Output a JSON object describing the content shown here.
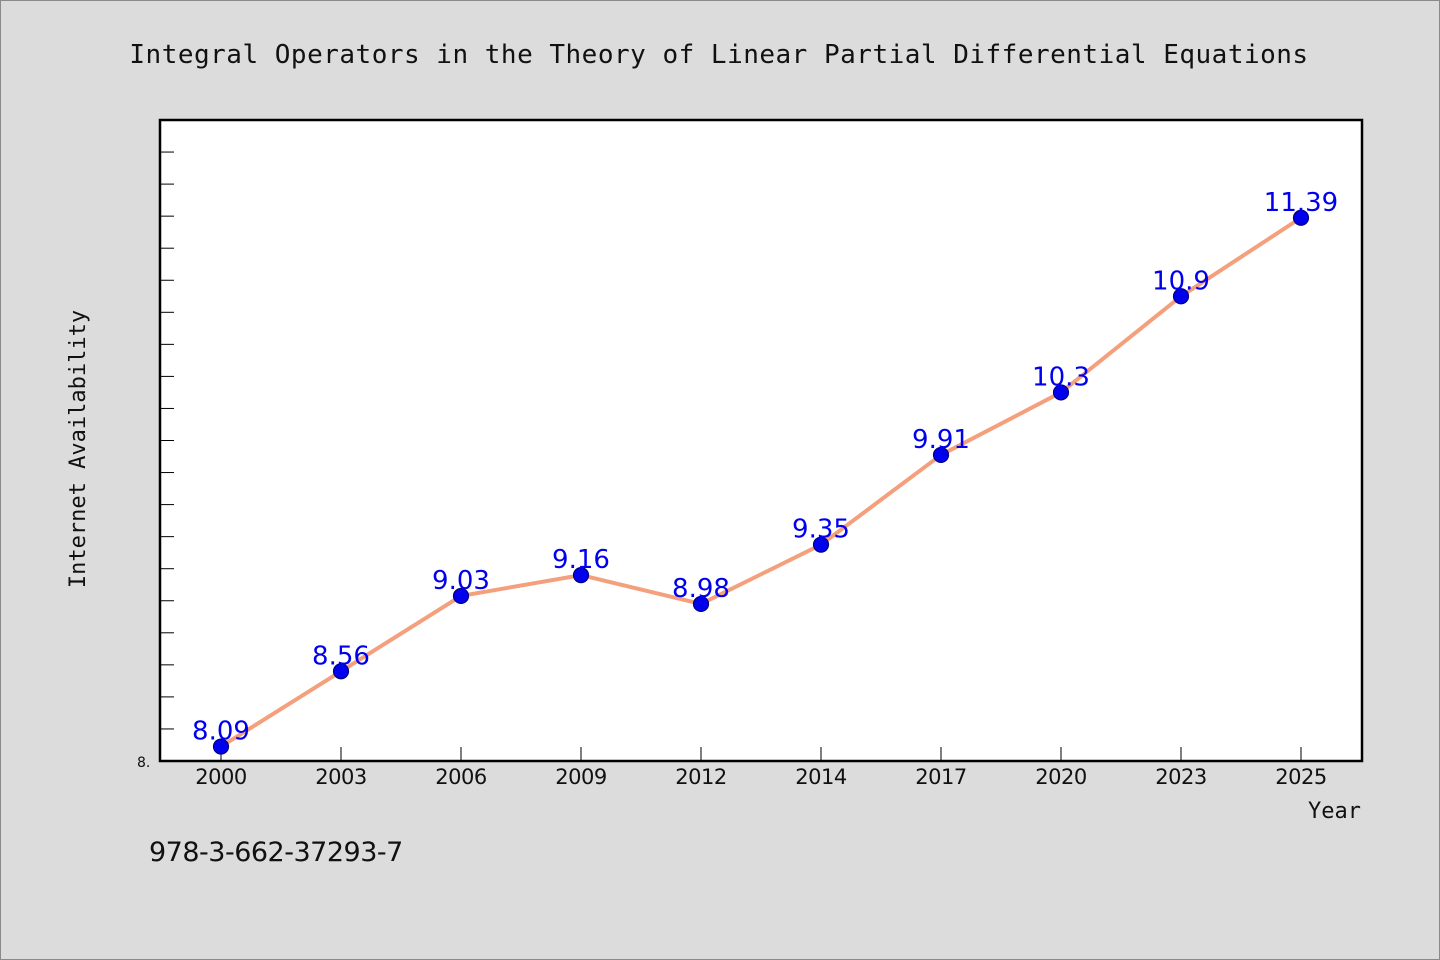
{
  "chart_data": {
    "type": "line",
    "title": "Integral Operators in the Theory of Linear Partial Differential Equations",
    "xlabel": "Year",
    "ylabel": "Internet Availability",
    "categories": [
      "2000",
      "2003",
      "2006",
      "2009",
      "2012",
      "2014",
      "2017",
      "2020",
      "2023",
      "2025"
    ],
    "series": [
      {
        "values": [
          8.09,
          8.56,
          9.03,
          9.16,
          8.98,
          9.35,
          9.91,
          10.3,
          10.9,
          11.39
        ],
        "labels": [
          "8.09",
          "8.56",
          "9.03",
          "9.16",
          "8.98",
          "9.35",
          "9.91",
          "10.3",
          "10.9",
          "11.39"
        ]
      }
    ],
    "ylim": [
      8.0,
      12.0
    ],
    "y_tick_label_min": "8.",
    "grid": false,
    "legend": "none"
  },
  "colors": {
    "line": "#f4a07c",
    "marker_fill": "#0000ee",
    "marker_stroke": "#000080",
    "value_label": "#0000ee",
    "axis": "#000000",
    "plot_background": "#ffffff",
    "page_background": "#dcdcdc"
  },
  "footer": {
    "isbn": "978-3-662-37293-7"
  }
}
